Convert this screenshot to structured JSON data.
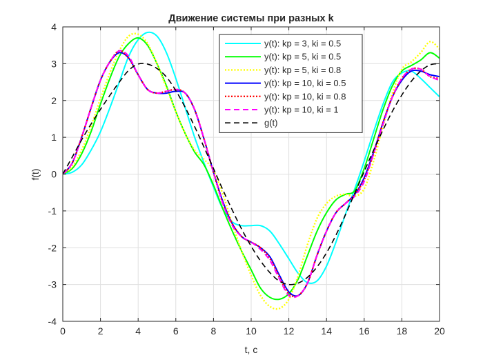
{
  "chart_data": {
    "type": "line",
    "title": "Движение системы при разных k",
    "xlabel": "t, c",
    "ylabel": "f(t)",
    "xlim": [
      0,
      20
    ],
    "ylim": [
      -4,
      4
    ],
    "xticks": [
      0,
      2,
      4,
      6,
      8,
      10,
      12,
      14,
      16,
      18,
      20
    ],
    "yticks": [
      -4,
      -3,
      -2,
      -1,
      0,
      1,
      2,
      3,
      4
    ],
    "grid": true,
    "legend_position": "top-right",
    "x": [
      0,
      0.5,
      1,
      1.5,
      2,
      2.5,
      3,
      3.5,
      4,
      4.5,
      5,
      5.5,
      6,
      6.5,
      7,
      7.5,
      8,
      8.5,
      9,
      9.5,
      10,
      10.5,
      11,
      11.5,
      12,
      12.5,
      13,
      13.5,
      14,
      14.5,
      15,
      15.5,
      16,
      16.5,
      17,
      17.5,
      18,
      18.5,
      19,
      19.5,
      20
    ],
    "series": [
      {
        "name": "y(t): kp = 3, ki = 0.5",
        "color": "#00ffff",
        "style": "solid",
        "values": [
          0,
          0.05,
          0.25,
          0.65,
          1.15,
          1.8,
          2.5,
          3.2,
          3.65,
          3.85,
          3.75,
          3.3,
          2.6,
          1.8,
          1.0,
          0.3,
          -0.35,
          -0.95,
          -1.3,
          -1.4,
          -1.4,
          -1.4,
          -1.55,
          -1.9,
          -2.3,
          -2.7,
          -2.95,
          -2.9,
          -2.5,
          -1.85,
          -1.1,
          -0.4,
          0.35,
          1.15,
          1.9,
          2.5,
          2.75,
          2.8,
          2.6,
          2.35,
          2.1
        ]
      },
      {
        "name": "y(t): kp = 5, ki = 0.5",
        "color": "#00ff00",
        "style": "solid",
        "values": [
          0,
          0.15,
          0.55,
          1.15,
          1.9,
          2.6,
          3.2,
          3.55,
          3.7,
          3.5,
          3.0,
          2.4,
          1.7,
          1.1,
          0.6,
          0.25,
          -0.3,
          -0.95,
          -1.55,
          -2.1,
          -2.6,
          -3.1,
          -3.35,
          -3.4,
          -3.25,
          -2.85,
          -2.2,
          -1.55,
          -1.05,
          -0.7,
          -0.55,
          -0.45,
          0.15,
          0.95,
          1.75,
          2.4,
          2.8,
          2.95,
          3.1,
          3.3,
          3.15
        ]
      },
      {
        "name": "y(t): kp = 5, ki = 0.8",
        "color": "#ffff00",
        "style": "dotted",
        "values": [
          0,
          0.2,
          0.65,
          1.3,
          2.05,
          2.75,
          3.35,
          3.75,
          3.8,
          3.55,
          3.0,
          2.35,
          1.7,
          1.1,
          0.65,
          0.4,
          0.1,
          -0.55,
          -1.35,
          -2.1,
          -2.75,
          -3.3,
          -3.6,
          -3.65,
          -3.4,
          -2.75,
          -1.9,
          -1.2,
          -0.8,
          -0.6,
          -0.55,
          -0.6,
          -0.4,
          0.35,
          1.3,
          2.2,
          2.85,
          3.05,
          3.3,
          3.6,
          3.4
        ]
      },
      {
        "name": "y(t): kp = 10, ki = 0.5",
        "color": "#0000ff",
        "style": "solid",
        "values": [
          0,
          0.3,
          1.0,
          1.8,
          2.55,
          3.05,
          3.3,
          3.15,
          2.7,
          2.3,
          2.2,
          2.2,
          2.25,
          2.2,
          1.75,
          0.95,
          0.05,
          -0.75,
          -1.35,
          -1.7,
          -1.85,
          -2.0,
          -2.25,
          -2.75,
          -3.2,
          -3.3,
          -2.95,
          -2.2,
          -1.55,
          -1.05,
          -0.8,
          -0.55,
          -0.1,
          0.6,
          1.4,
          2.1,
          2.55,
          2.8,
          2.8,
          2.7,
          2.65
        ]
      },
      {
        "name": "y(t): kp = 10, ki = 0.8",
        "color": "#ff0000",
        "style": "dotted",
        "values": [
          0,
          0.3,
          1.0,
          1.8,
          2.55,
          3.05,
          3.35,
          3.15,
          2.7,
          2.3,
          2.2,
          2.25,
          2.3,
          2.2,
          1.75,
          0.95,
          0.05,
          -0.8,
          -1.35,
          -1.7,
          -1.85,
          -2.0,
          -2.3,
          -2.8,
          -3.25,
          -3.3,
          -2.95,
          -2.2,
          -1.55,
          -1.05,
          -0.8,
          -0.55,
          -0.15,
          0.55,
          1.4,
          2.1,
          2.6,
          2.85,
          2.85,
          2.65,
          2.6
        ]
      },
      {
        "name": "y(t): kp = 10, ki = 1",
        "color": "#ff00ff",
        "style": "dashed",
        "values": [
          0,
          0.3,
          1.0,
          1.8,
          2.55,
          3.05,
          3.35,
          3.2,
          2.7,
          2.3,
          2.2,
          2.25,
          2.3,
          2.2,
          1.75,
          0.95,
          0.05,
          -0.8,
          -1.4,
          -1.7,
          -1.85,
          -2.05,
          -2.35,
          -2.85,
          -3.3,
          -3.3,
          -2.95,
          -2.2,
          -1.55,
          -1.05,
          -0.8,
          -0.6,
          -0.2,
          0.55,
          1.35,
          2.1,
          2.6,
          2.85,
          2.85,
          2.65,
          2.55
        ]
      },
      {
        "name": "g(t)",
        "color": "#000000",
        "style": "dashed",
        "values": [
          0,
          0.46,
          0.93,
          1.36,
          1.76,
          2.14,
          2.5,
          2.82,
          2.99,
          2.99,
          2.87,
          2.64,
          2.27,
          1.81,
          1.29,
          0.73,
          0.15,
          -0.43,
          -0.98,
          -1.5,
          -1.96,
          -2.36,
          -2.68,
          -2.91,
          -3.0,
          -2.96,
          -2.8,
          -2.52,
          -2.14,
          -1.66,
          -1.11,
          -0.52,
          0.07,
          0.65,
          1.2,
          1.71,
          2.15,
          2.52,
          2.8,
          2.97,
          3.0
        ]
      }
    ]
  }
}
